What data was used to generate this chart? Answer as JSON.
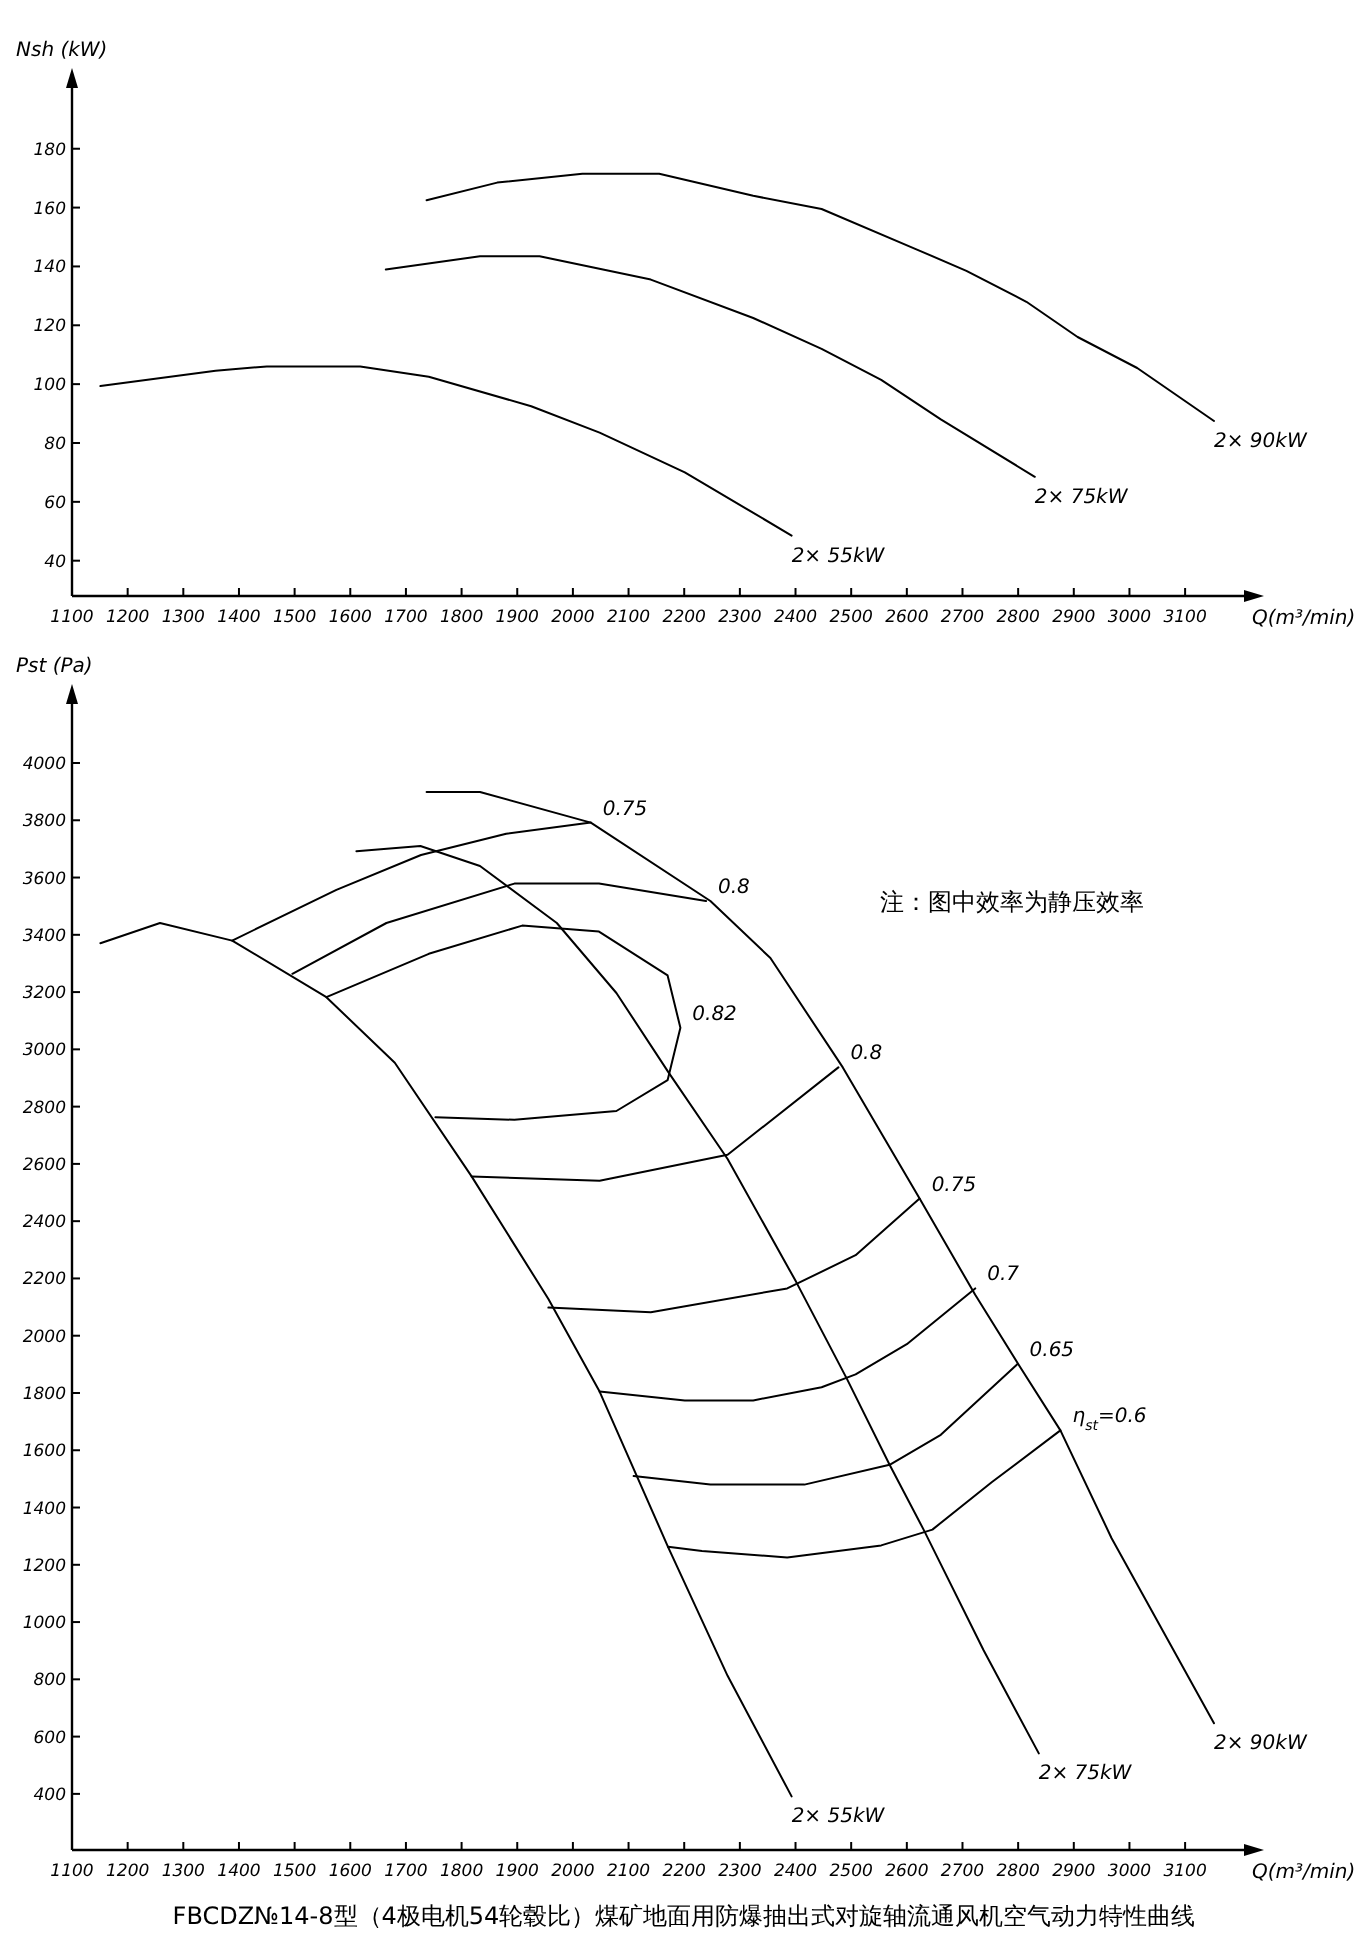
{
  "chart_data": [
    {
      "type": "line",
      "xlabel": "Q(m³/min)",
      "ylabel": "Nsh (kW)",
      "xlim": [
        1100,
        3213
      ],
      "ylim": [
        28,
        202
      ],
      "xticks": [
        1100,
        1200,
        1300,
        1400,
        1500,
        1600,
        1700,
        1800,
        1900,
        2000,
        2100,
        2200,
        2300,
        2400,
        2500,
        2600,
        2700,
        2800,
        2900,
        3000,
        3100
      ],
      "yticks": [
        40,
        60,
        80,
        100,
        120,
        140,
        160,
        180
      ],
      "series": [
        {
          "name": "2× 55kW",
          "color": "#000000",
          "x": [
            1151,
            1358,
            1450,
            1618,
            1741,
            1925,
            2048,
            2201,
            2309,
            2393
          ],
          "values": [
            99.4,
            104.5,
            106,
            106,
            102.5,
            92.5,
            83.5,
            70,
            58,
            48.5
          ]
        },
        {
          "name": "2× 75kW",
          "color": "#000000",
          "x": [
            1664,
            1833,
            1940,
            2140,
            2324,
            2447,
            2554,
            2661,
            2830
          ],
          "values": [
            139,
            143.5,
            143.5,
            135.5,
            122.5,
            112,
            101.5,
            88,
            68.5
          ]
        },
        {
          "name": "2× 90kW",
          "color": "#000000",
          "x": [
            1737,
            1864,
            2017,
            2155,
            2324,
            2447,
            2615,
            2707,
            2815,
            2907,
            3014,
            3152
          ],
          "values": [
            162.5,
            168.5,
            171.5,
            171.5,
            164,
            159.5,
            146,
            138.5,
            128,
            116,
            105.5,
            87.5
          ]
        }
      ]
    },
    {
      "type": "line",
      "xlabel": "Q(m³/min)",
      "ylabel": "Pst (Pa)",
      "xlim": [
        1100,
        3213
      ],
      "ylim": [
        204,
        4220
      ],
      "xticks": [
        1100,
        1200,
        1300,
        1400,
        1500,
        1600,
        1700,
        1800,
        1900,
        2000,
        2100,
        2200,
        2300,
        2400,
        2500,
        2600,
        2700,
        2800,
        2900,
        3000,
        3100
      ],
      "yticks": [
        400,
        600,
        800,
        1000,
        1200,
        1400,
        1600,
        1800,
        2000,
        2200,
        2400,
        2600,
        2800,
        3000,
        3200,
        3400,
        3600,
        3800,
        4000
      ],
      "annotations": [
        "注：图中效率为静压效率",
        "FBCDZ№14-8型（4极电机54轮毂比）煤矿地面用防爆抽出式对旋轴流通风机空气动力特性曲线"
      ],
      "series": [
        {
          "name": "2× 55kW",
          "color": "#000000",
          "x": [
            1151,
            1258,
            1388,
            1557,
            1680,
            1818,
            1956,
            2048,
            2171,
            2278,
            2393
          ],
          "values": [
            3371,
            3441,
            3380,
            3182,
            2953,
            2556,
            2128,
            1805,
            1263,
            812,
            391
          ]
        },
        {
          "name": "2× 75kW",
          "color": "#000000",
          "x": [
            1611,
            1726,
            1833,
            1971,
            2078,
            2171,
            2278,
            2401,
            2492,
            2569,
            2630,
            2738,
            2837
          ],
          "values": [
            3692,
            3710,
            3640,
            3441,
            3197,
            2922,
            2617,
            2189,
            1850,
            1549,
            1323,
            902,
            541
          ]
        },
        {
          "name": "2× 90kW",
          "color": "#000000",
          "x": [
            1737,
            1833,
            2032,
            2247,
            2355,
            2485,
            2623,
            2723,
            2800,
            2876,
            2968,
            3152
          ],
          "values": [
            3899,
            3899,
            3792,
            3518,
            3319,
            2937,
            2479,
            2143,
            1901,
            1669,
            1293,
            647
          ]
        },
        {
          "name": "0.75",
          "color": "#000000",
          "x": [
            1388,
            1575,
            1727,
            1880,
            2032
          ],
          "values": [
            3380,
            3557,
            3679,
            3753,
            3792
          ]
        },
        {
          "name": "0.8",
          "color": "#000000",
          "x": [
            1496,
            1665,
            1895,
            2047,
            2239
          ],
          "values": [
            3264,
            3441,
            3579,
            3579,
            3518
          ]
        },
        {
          "name": "0.82",
          "color": "#000000",
          "x": [
            1557,
            1741,
            1909,
            2047,
            2170,
            2193,
            2170,
            2078,
            1895,
            1753
          ],
          "values": [
            3182,
            3334,
            3432,
            3411,
            3258,
            3075,
            2892,
            2785,
            2754,
            2763
          ]
        },
        {
          "name": "0.8",
          "color": "#000000",
          "x": [
            1818,
            2048,
            2278,
            2477
          ],
          "values": [
            2556,
            2541,
            2632,
            2937
          ]
        },
        {
          "name": "0.75",
          "color": "#000000",
          "x": [
            1956,
            2140,
            2385,
            2508,
            2623
          ],
          "values": [
            2098,
            2082,
            2165,
            2281,
            2479
          ]
        },
        {
          "name": "0.7",
          "color": "#000000",
          "x": [
            2048,
            2201,
            2324,
            2447,
            2508,
            2600,
            2723
          ],
          "values": [
            1805,
            1774,
            1774,
            1820,
            1865,
            1970,
            2165
          ]
        },
        {
          "name": "0.65",
          "color": "#000000",
          "x": [
            2109,
            2247,
            2416,
            2569,
            2661,
            2799
          ],
          "values": [
            1510,
            1480,
            1480,
            1549,
            1654,
            1901
          ]
        },
        {
          "name": "η$_{st}$=0.6",
          "color": "#000000",
          "x": [
            2171,
            2232,
            2385,
            2554,
            2646,
            2753,
            2876
          ],
          "values": [
            1263,
            1248,
            1226,
            1268,
            1323,
            1489,
            1669
          ]
        }
      ]
    }
  ]
}
